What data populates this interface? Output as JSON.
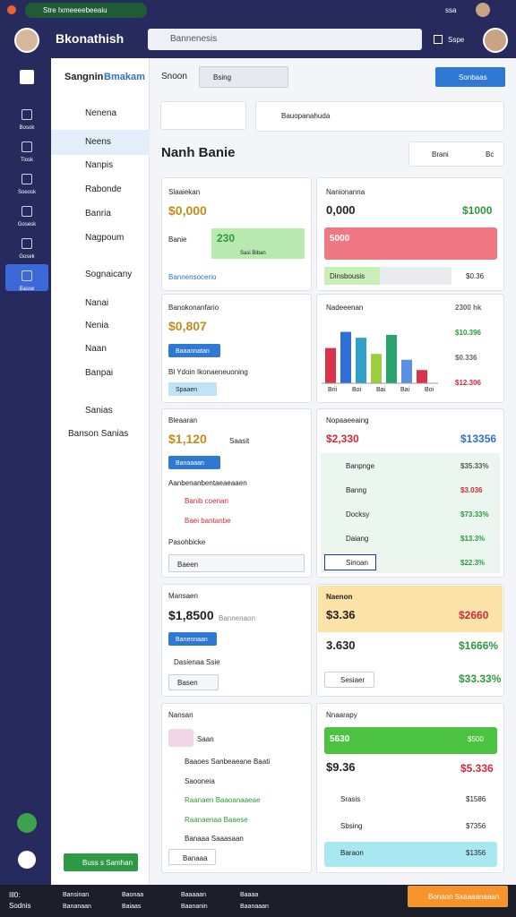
{
  "status_bar": {
    "notice": "Stre Ixmeeeebeeaiu",
    "time": "ssa"
  },
  "header": {
    "app_name": "Bkonathish",
    "search_placeholder": "Bannenesis",
    "toggle_label": "Sspe"
  },
  "rail": [
    "Bosok",
    "Tiosk",
    "Soeosk",
    "Gosesk",
    "Gosek",
    "Basse"
  ],
  "sidebar": {
    "title_a": "Sangnin",
    "title_b": "Bmakam",
    "items": [
      "Nenena",
      "Neens",
      "Nanpis",
      "Rabonde",
      "Banria",
      "Nagpoum",
      "Sognaicany",
      "Nanai",
      "Nenia",
      "Naan",
      "Banpai",
      "Sanias",
      "Banson Sanias"
    ],
    "button": "Buss s Samhan"
  },
  "toolbar": {
    "label": "Snoon",
    "select": "Bsing",
    "button": "Sonbaas",
    "filter": "Bauopanahuda"
  },
  "page_title": "Nanh Banie",
  "actions": [
    "Brani",
    "Bc"
  ],
  "cards": [
    {
      "title": "Slaaiekan",
      "value": "$0,000",
      "label": "Banie",
      "badge": "230",
      "badge_sub": "Sasi Biban",
      "link": "Bannensocerio"
    },
    {
      "title": "Nanionanna",
      "value": "0,000",
      "value2": "$1000",
      "alert": "5000",
      "progress": "Dinsbousis",
      "progress_value": "$0.36"
    },
    {
      "title": "Banokonanfario",
      "value": "$0,807",
      "button": "Baaannatan",
      "note": "Bl Ydoin Ikonaeneuoning",
      "chip": "Spaaen"
    },
    {
      "title": "Nadeeenan",
      "labels": [
        "2300 hk",
        "$10.396",
        "$0.336",
        "$12.306"
      ],
      "x_labels": [
        "Brii",
        "Boi",
        "Bai",
        "Bai",
        "Boi"
      ]
    },
    {
      "title": "Bleaaran",
      "value": "$1,120",
      "sub": "Saasit",
      "button": "Banaaaan",
      "note": "Aanbenanbentaeaeaaen",
      "items": [
        "Banib coenan",
        "Baei bantanbe"
      ],
      "note2": "Pasohbicke",
      "input": "Baeen"
    },
    {
      "title": "Nopaaeeaing",
      "value": "$2,330",
      "value2": "$13356",
      "rows": [
        [
          "Banpnge",
          "$35.33%"
        ],
        [
          "Banng",
          "$3.036"
        ],
        [
          "Docksy",
          "$73.33%"
        ],
        [
          "Daiang",
          "$13.3%"
        ],
        [
          "Sinoan",
          "$22.3%"
        ]
      ]
    },
    {
      "title": "Mansaen",
      "value": "$1,8500",
      "sub": "Bannenaon",
      "button": "Banennaan",
      "note": "Dasienaa Ssie",
      "input": "Basen"
    },
    {
      "title": "Naenon",
      "value": "$3.36",
      "value2": "$2660",
      "value3": "3.630",
      "value4": "$1666%",
      "button": "Sesiaer",
      "value5": "$33.33%"
    },
    {
      "title": "Nansan",
      "chip": "Saan",
      "items": [
        "Baaoes Sanbeaeane Baati",
        "Saooneia",
        "Raanaen Baaoanaaeae",
        "Raanaenaa Baaese",
        "Banaaa Saaasaan"
      ],
      "button": "Banaaa"
    },
    {
      "title": "Nnaarapy",
      "bar": "5630",
      "bar_value": "$500",
      "value": "$9.36",
      "value2": "$5.336",
      "rows": [
        [
          "Srasis",
          "$1586"
        ],
        [
          "Sbsing",
          "$7356"
        ],
        [
          "Baraon",
          "$1356"
        ]
      ]
    }
  ],
  "chart": {
    "values": [
      48,
      70,
      62,
      40,
      66,
      32,
      18
    ],
    "colors": [
      "#d9334a",
      "#2f6fd6",
      "#2fa0c8",
      "#9ccf3c",
      "#27a46a",
      "#5b8fe0",
      "#d9334a"
    ],
    "ylim": [
      0,
      100
    ]
  },
  "bottom_bar": {
    "left": "Ill0: Sodnis",
    "items": [
      "Bansinan",
      "Bananaan",
      "Baonaa",
      "Baiaas",
      "Baaaaan",
      "Baananin",
      "Baaaa",
      "Baanaaan"
    ],
    "button": "Bonaon Sxaaaanaaan"
  }
}
